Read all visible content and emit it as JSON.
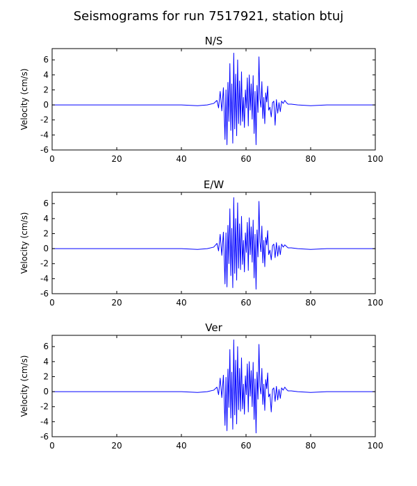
{
  "figure": {
    "title": "Seismograms for run 7517921, station btuj"
  },
  "colors": {
    "trace": "#0000ff",
    "axes": "#000000",
    "background": "#ffffff"
  },
  "chart_data": [
    {
      "type": "line",
      "title": "N/S",
      "xlabel": "",
      "ylabel": "Velocity (cm/s)",
      "xlim": [
        0,
        100
      ],
      "ylim": [
        -6,
        7.5
      ],
      "xticks": [
        0,
        20,
        40,
        60,
        80,
        100
      ],
      "yticks": [
        -6,
        -4,
        -2,
        0,
        2,
        4,
        6
      ],
      "grid": false,
      "series": [
        {
          "x": [
            0,
            10,
            20,
            30,
            40,
            45,
            48,
            50,
            51,
            51.5,
            52,
            52.5,
            53,
            53.5,
            53.8,
            54.1,
            54.4,
            54.7,
            55.0,
            55.3,
            55.6,
            55.9,
            56.2,
            56.5,
            56.8,
            57.1,
            57.4,
            57.7,
            58.0,
            58.3,
            58.6,
            58.9,
            59.2,
            59.5,
            59.8,
            60.1,
            60.4,
            60.7,
            61.0,
            61.3,
            61.6,
            61.9,
            62.2,
            62.5,
            62.8,
            63.1,
            63.4,
            63.7,
            64.0,
            64.3,
            64.6,
            64.9,
            65.2,
            65.5,
            65.8,
            66.1,
            66.4,
            66.7,
            67.0,
            67.4,
            67.8,
            68.2,
            68.6,
            69.0,
            69.4,
            69.8,
            70.2,
            70.6,
            71.0,
            71.5,
            72.0,
            72.5,
            73.0,
            74,
            76,
            80,
            85,
            90,
            95,
            100
          ],
          "y": [
            0,
            0,
            0,
            0,
            0,
            -0.1,
            0,
            0.2,
            0.6,
            -0.4,
            1.8,
            -0.8,
            2.3,
            -4.6,
            2.0,
            -5.3,
            3.0,
            -2.2,
            5.5,
            -3.4,
            2.8,
            -5.1,
            6.9,
            -3.2,
            4.1,
            -4.1,
            6.0,
            -2.5,
            3.2,
            -2.7,
            4.4,
            -2.2,
            1.0,
            -3.0,
            2.0,
            -0.4,
            3.6,
            -2.8,
            4.0,
            -0.7,
            2.8,
            -1.9,
            3.9,
            -3.8,
            1.8,
            -5.3,
            2.6,
            -1.0,
            6.4,
            0.8,
            -0.3,
            3.1,
            -1.8,
            1.0,
            -2.5,
            1.6,
            0.4,
            2.5,
            -0.7,
            -0.3,
            -1.6,
            0.3,
            0.5,
            -2.7,
            0.7,
            -1.1,
            0.3,
            -0.9,
            0.5,
            0.2,
            0.6,
            0.3,
            0.1,
            0.1,
            0,
            -0.1,
            0,
            0,
            0,
            0
          ]
        }
      ]
    },
    {
      "type": "line",
      "title": "E/W",
      "xlabel": "",
      "ylabel": "Velocity (cm/s)",
      "xlim": [
        0,
        100
      ],
      "ylim": [
        -6,
        7.5
      ],
      "xticks": [
        0,
        20,
        40,
        60,
        80,
        100
      ],
      "yticks": [
        -6,
        -4,
        -2,
        0,
        2,
        4,
        6
      ],
      "grid": false,
      "series": [
        {
          "x": [
            0,
            10,
            20,
            30,
            40,
            45,
            48,
            50,
            51,
            51.5,
            52,
            52.5,
            53,
            53.5,
            53.8,
            54.1,
            54.4,
            54.7,
            55.0,
            55.3,
            55.6,
            55.9,
            56.2,
            56.5,
            56.8,
            57.1,
            57.4,
            57.7,
            58.0,
            58.3,
            58.6,
            58.9,
            59.2,
            59.5,
            59.8,
            60.1,
            60.4,
            60.7,
            61.0,
            61.3,
            61.6,
            61.9,
            62.2,
            62.5,
            62.8,
            63.1,
            63.4,
            63.7,
            64.0,
            64.3,
            64.6,
            64.9,
            65.2,
            65.5,
            65.8,
            66.1,
            66.4,
            66.7,
            67.0,
            67.4,
            67.8,
            68.2,
            68.6,
            69.0,
            69.4,
            69.8,
            70.2,
            70.6,
            71.0,
            71.5,
            72.0,
            72.5,
            73.0,
            74,
            76,
            80,
            85,
            90,
            95,
            100
          ],
          "y": [
            0,
            0,
            0,
            0,
            0,
            -0.1,
            0,
            0.2,
            0.7,
            -0.3,
            1.9,
            -0.9,
            2.2,
            -4.7,
            2.1,
            -5.1,
            3.1,
            -2.0,
            5.3,
            -3.6,
            2.7,
            -5.2,
            6.8,
            -3.3,
            4.0,
            -4.2,
            6.1,
            -2.6,
            3.3,
            -2.8,
            4.3,
            -2.1,
            1.1,
            -3.1,
            2.1,
            -0.5,
            3.5,
            -2.9,
            4.1,
            -0.8,
            2.9,
            -1.8,
            3.8,
            -3.9,
            1.9,
            -5.4,
            2.5,
            -1.1,
            6.3,
            0.9,
            -0.4,
            3.0,
            -1.9,
            1.1,
            -2.4,
            1.5,
            0.5,
            2.4,
            -0.8,
            -0.2,
            -1.5,
            0.4,
            0.6,
            -1.2,
            0.8,
            -1.0,
            0.4,
            -0.8,
            0.6,
            0.2,
            0.5,
            0.3,
            0.1,
            0.1,
            0,
            -0.1,
            0,
            0,
            0,
            0
          ]
        }
      ]
    },
    {
      "type": "line",
      "title": "Ver",
      "xlabel": "",
      "ylabel": "Velocity (cm/s)",
      "xlim": [
        0,
        100
      ],
      "ylim": [
        -6,
        7.5
      ],
      "xticks": [
        0,
        20,
        40,
        60,
        80,
        100
      ],
      "yticks": [
        -6,
        -4,
        -2,
        0,
        2,
        4,
        6
      ],
      "grid": false,
      "series": [
        {
          "x": [
            0,
            10,
            20,
            30,
            40,
            45,
            48,
            50,
            51,
            51.5,
            52,
            52.5,
            53,
            53.5,
            53.8,
            54.1,
            54.4,
            54.7,
            55.0,
            55.3,
            55.6,
            55.9,
            56.2,
            56.5,
            56.8,
            57.1,
            57.4,
            57.7,
            58.0,
            58.3,
            58.6,
            58.9,
            59.2,
            59.5,
            59.8,
            60.1,
            60.4,
            60.7,
            61.0,
            61.3,
            61.6,
            61.9,
            62.2,
            62.5,
            62.8,
            63.1,
            63.4,
            63.7,
            64.0,
            64.3,
            64.6,
            64.9,
            65.2,
            65.5,
            65.8,
            66.1,
            66.4,
            66.7,
            67.0,
            67.4,
            67.8,
            68.2,
            68.6,
            69.0,
            69.4,
            69.8,
            70.2,
            70.6,
            71.0,
            71.5,
            72.0,
            72.5,
            73.0,
            74,
            76,
            80,
            85,
            90,
            95,
            100
          ],
          "y": [
            0,
            0,
            0,
            0,
            0,
            -0.1,
            0,
            0.2,
            0.6,
            -0.4,
            1.8,
            -0.8,
            2.2,
            -4.5,
            1.9,
            -5.2,
            3.0,
            -2.1,
            5.6,
            -3.5,
            2.6,
            -5.0,
            6.9,
            -3.1,
            4.2,
            -4.3,
            6.0,
            -2.4,
            3.1,
            -2.6,
            4.5,
            -2.3,
            1.0,
            -3.0,
            2.1,
            -0.4,
            3.7,
            -2.7,
            4.0,
            -0.6,
            2.8,
            -2.0,
            3.9,
            -3.7,
            1.7,
            -5.5,
            2.6,
            -1.0,
            6.3,
            0.7,
            -0.3,
            3.1,
            -1.7,
            1.0,
            -2.5,
            1.6,
            0.4,
            2.5,
            -0.7,
            -0.3,
            -2.7,
            0.3,
            0.5,
            -1.3,
            0.7,
            -1.1,
            0.3,
            -0.9,
            0.5,
            0.2,
            0.6,
            0.3,
            0.1,
            0.1,
            0,
            -0.1,
            0,
            0,
            0,
            0
          ]
        }
      ]
    }
  ]
}
